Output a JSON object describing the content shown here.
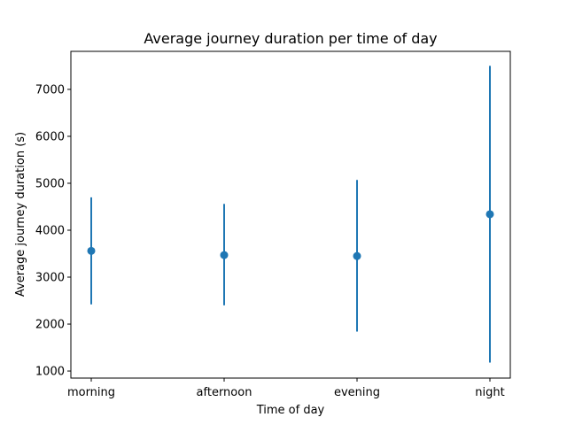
{
  "chart_data": {
    "type": "scatter",
    "title": "Average journey duration per time of day",
    "xlabel": "Time of day",
    "ylabel": "Average journey duration (s)",
    "categories": [
      "morning",
      "afternoon",
      "evening",
      "night"
    ],
    "series": [
      {
        "values": [
          3560,
          3470,
          3450,
          4340
        ],
        "error_low": [
          2420,
          2400,
          1840,
          1180
        ],
        "error_high": [
          4700,
          4560,
          5070,
          7500
        ],
        "color": "#1f77b4"
      }
    ],
    "ylim": [
      850,
      7810
    ],
    "yticks": [
      1000,
      2000,
      3000,
      4000,
      5000,
      6000,
      7000
    ],
    "ytick_labels": [
      "1000",
      "2000",
      "3000",
      "4000",
      "5000",
      "6000",
      "7000"
    ],
    "grid": false,
    "legend": "none"
  }
}
